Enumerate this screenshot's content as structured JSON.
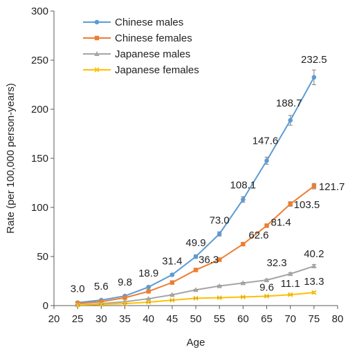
{
  "chart_data": {
    "type": "line",
    "title": "",
    "xlabel": "Age",
    "ylabel": "Rate (per 100,000 person-years)",
    "xlim": [
      20,
      80
    ],
    "ylim": [
      0,
      300
    ],
    "xticks": [
      20,
      25,
      30,
      35,
      40,
      45,
      50,
      55,
      60,
      65,
      70,
      75,
      80
    ],
    "yticks": [
      0,
      50,
      100,
      150,
      200,
      250,
      300
    ],
    "x": [
      25,
      30,
      35,
      40,
      45,
      50,
      55,
      60,
      65,
      70,
      75
    ],
    "grid": false,
    "legend": "top-left",
    "series": [
      {
        "name": "Chinese males",
        "color": "#5B9BD5",
        "marker": "circle",
        "values": [
          3.0,
          5.6,
          9.8,
          18.9,
          31.4,
          49.9,
          73.0,
          108.1,
          147.6,
          188.7,
          232.5
        ],
        "errors": [
          0.5,
          0.5,
          0.6,
          0.9,
          1.3,
          1.8,
          2.2,
          2.8,
          3.6,
          5.0,
          7.5
        ],
        "labels": [
          "3.0",
          "5.6",
          "9.8",
          "18.9",
          "31.4",
          "49.9",
          "73.0",
          "108.1",
          "147.6",
          "188.7",
          "232.5"
        ]
      },
      {
        "name": "Chinese females",
        "color": "#ED7D31",
        "marker": "square",
        "values": [
          2.4,
          4.0,
          8.0,
          14.5,
          23.5,
          36.3,
          46.8,
          62.6,
          81.4,
          103.5,
          121.7
        ],
        "errors": [
          0.3,
          0.4,
          0.5,
          0.6,
          0.8,
          1.0,
          1.2,
          1.4,
          1.8,
          2.3,
          2.8
        ],
        "labels": [
          "",
          "",
          "",
          "",
          "",
          "36.3",
          "",
          "62.6",
          "81.4",
          "103.5",
          "121.7"
        ]
      },
      {
        "name": "Japanese males",
        "color": "#A5A5A5",
        "marker": "triangle",
        "values": [
          1.0,
          2.0,
          4.0,
          7.0,
          11.0,
          16.0,
          20.0,
          23.0,
          26.0,
          32.3,
          40.2
        ],
        "errors": [
          0.2,
          0.2,
          0.3,
          0.3,
          0.4,
          0.5,
          0.6,
          0.7,
          0.9,
          1.1,
          1.6
        ],
        "labels": [
          "",
          "",
          "",
          "",
          "",
          "",
          "",
          "",
          "",
          "32.3",
          "40.2"
        ]
      },
      {
        "name": "Japanese females",
        "color": "#FFC000",
        "marker": "cross",
        "values": [
          0.6,
          1.2,
          2.0,
          3.5,
          5.5,
          7.5,
          8.0,
          8.8,
          9.6,
          11.1,
          13.3
        ],
        "errors": [
          0.1,
          0.2,
          0.2,
          0.3,
          0.3,
          0.4,
          0.4,
          0.5,
          0.6,
          0.8,
          1.0
        ],
        "labels": [
          "",
          "",
          "",
          "",
          "",
          "",
          "",
          "",
          "9.6",
          "11.1",
          "13.3"
        ]
      }
    ]
  }
}
